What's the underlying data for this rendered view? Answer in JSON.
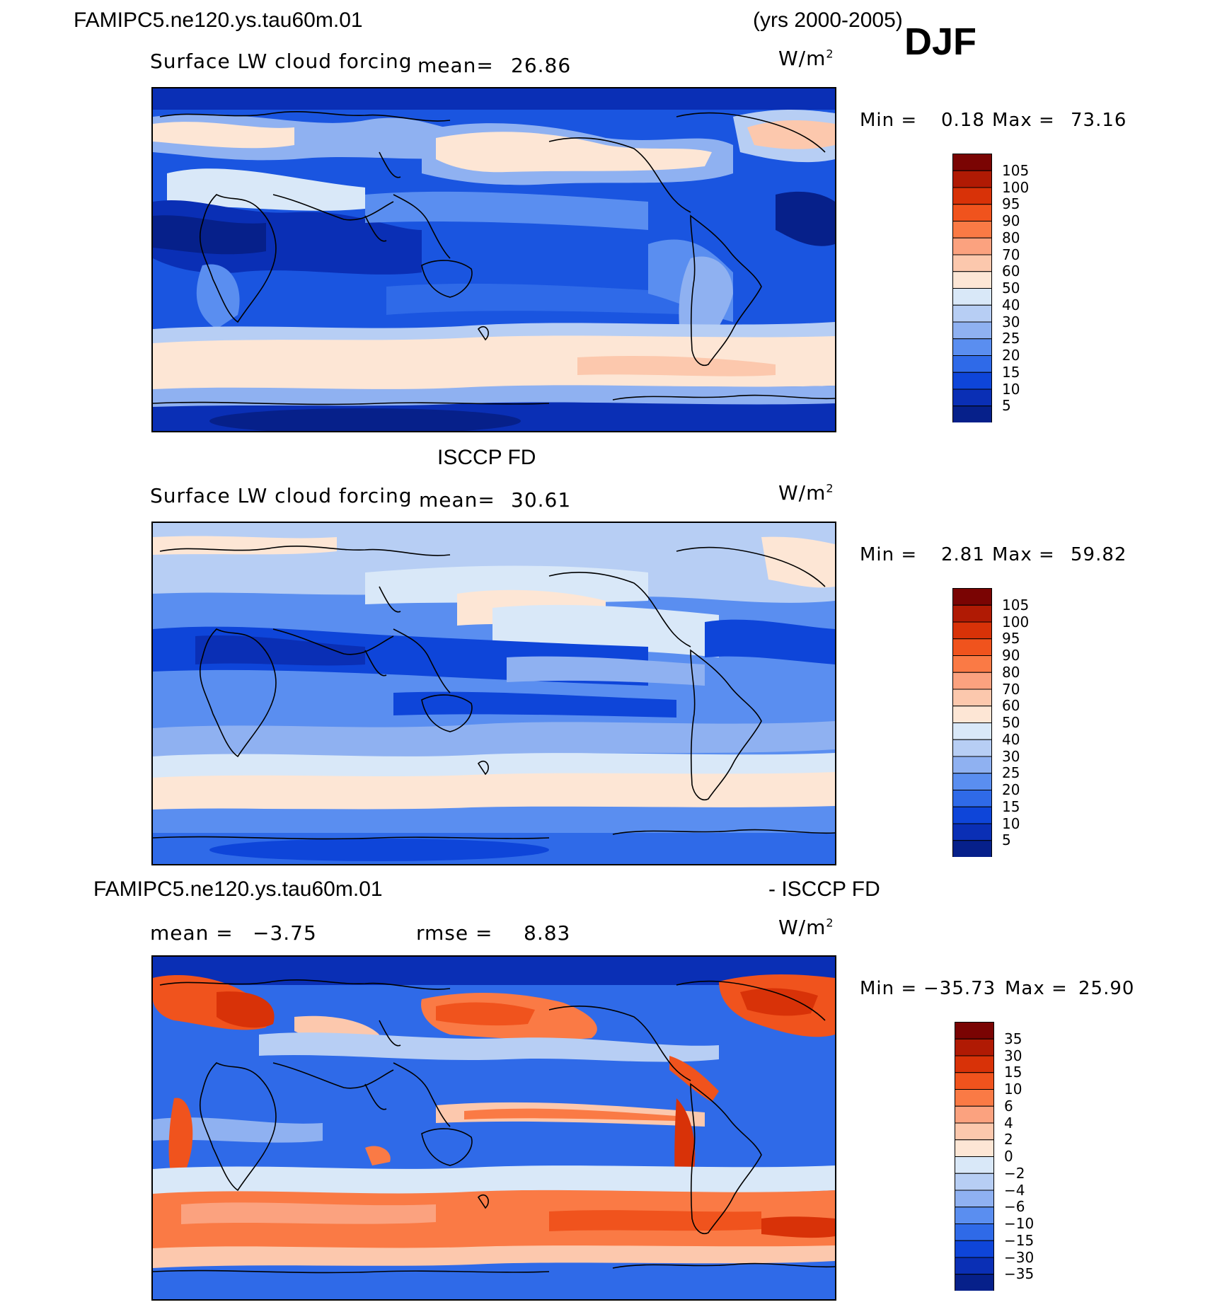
{
  "header": {
    "case_title": "FAMIPC5.ne120.ys.tau60m.01",
    "years": "(yrs 2000-2005)",
    "season": "DJF"
  },
  "panels": [
    {
      "title": "",
      "field_label": "Surface LW cloud forcing",
      "mean_label": "mean=",
      "mean_value": "26.86",
      "units": "W/m",
      "units_sup": "2",
      "min_label": "Min =",
      "min_value": "0.18",
      "max_label": "Max =",
      "max_value": "73.16",
      "colorbar_labels": [
        "105",
        "100",
        "95",
        "90",
        "80",
        "70",
        "60",
        "50",
        "40",
        "30",
        "25",
        "20",
        "15",
        "10",
        "5"
      ]
    },
    {
      "title": "ISCCP FD",
      "field_label": "Surface LW cloud forcing",
      "mean_label": "mean=",
      "mean_value": "30.61",
      "units": "W/m",
      "units_sup": "2",
      "min_label": "Min =",
      "min_value": "2.81",
      "max_label": "Max =",
      "max_value": "59.82",
      "colorbar_labels": [
        "105",
        "100",
        "95",
        "90",
        "80",
        "70",
        "60",
        "50",
        "40",
        "30",
        "25",
        "20",
        "15",
        "10",
        "5"
      ]
    },
    {
      "title_left": "FAMIPC5.ne120.ys.tau60m.01",
      "title_right": "- ISCCP FD",
      "mean_label": "mean =",
      "mean_value": "−3.75",
      "rmse_label": "rmse =",
      "rmse_value": "8.83",
      "units": "W/m",
      "units_sup": "2",
      "min_label": "Min =",
      "min_value": "−35.73",
      "max_label": "Max =",
      "max_value": "25.90",
      "colorbar_labels": [
        "35",
        "30",
        "15",
        "10",
        "6",
        "4",
        "2",
        "0",
        "−2",
        "−4",
        "−6",
        "−10",
        "−15",
        "−30",
        "−35"
      ]
    }
  ],
  "colors": {
    "absolute_scale": [
      "#7a0403",
      "#b01a04",
      "#d83208",
      "#f0531d",
      "#fa7a45",
      "#fba27f",
      "#fcc8ad",
      "#fde6d5",
      "#d9e8f8",
      "#b7cef4",
      "#8fb1f1",
      "#5a8ef0",
      "#2f6ae8",
      "#0e45d9",
      "#0a2fb5",
      "#06208a"
    ],
    "diff_scale": [
      "#7a0403",
      "#b01a04",
      "#d83208",
      "#f0531d",
      "#fa7a45",
      "#fba27f",
      "#fcc8ad",
      "#fde6d5",
      "#d9e8f8",
      "#b7cef4",
      "#8fb1f1",
      "#5a8ef0",
      "#2f6ae8",
      "#0e45d9",
      "#0a2fb5",
      "#06208a"
    ]
  }
}
